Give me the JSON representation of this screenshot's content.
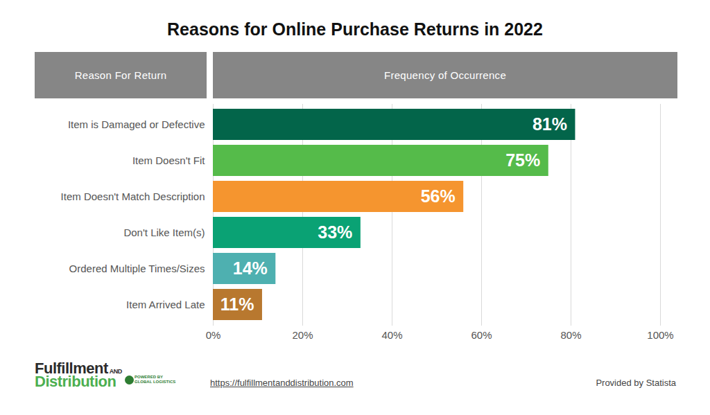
{
  "chart_data": {
    "type": "bar",
    "orientation": "horizontal",
    "title": "Reasons for Online Purchase Returns in 2022",
    "ylabel": "Reason For Return",
    "xlabel": "Frequency of Occurrence",
    "categories": [
      "Item is Damaged or Defective",
      "Item Doesn't Fit",
      "Item Doesn't Match Description",
      "Don't Like Item(s)",
      "Ordered Multiple Times/Sizes",
      "Item Arrived Late"
    ],
    "values": [
      81,
      75,
      56,
      33,
      14,
      11
    ],
    "value_labels": [
      "81%",
      "75%",
      "56%",
      "33%",
      "14%",
      "11%"
    ],
    "colors": [
      "#03654a",
      "#55bb4a",
      "#f5952f",
      "#0aa274",
      "#4eb0b0",
      "#b8782f"
    ],
    "xlim": [
      0,
      100
    ],
    "xticks": [
      {
        "value": 0,
        "label": "0%"
      },
      {
        "value": 20,
        "label": "20%"
      },
      {
        "value": 40,
        "label": "40%"
      },
      {
        "value": 60,
        "label": "60%"
      },
      {
        "value": 80,
        "label": "80%"
      },
      {
        "value": 100,
        "label": "100%"
      }
    ],
    "grid": true,
    "data_labels": true,
    "annotations": [
      "Fulfillment",
      "AND",
      "Distribution",
      "POWERED BY",
      "GLOBAL LOGISTICS",
      "https://fulfillmentanddistribution.com",
      "Provided by Statista"
    ]
  }
}
